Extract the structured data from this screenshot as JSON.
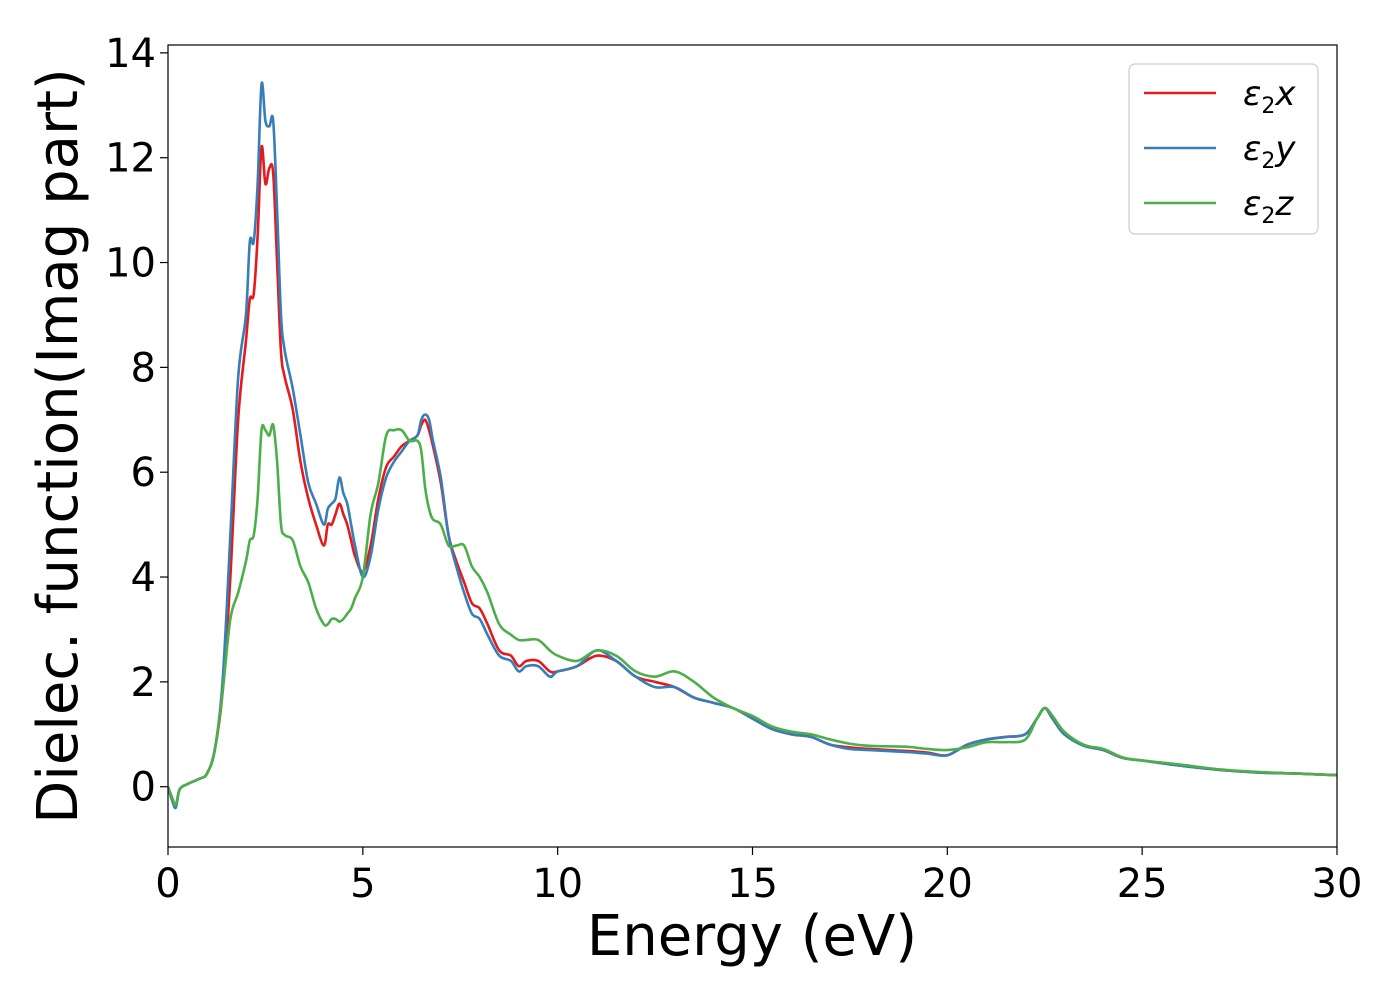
{
  "chart_data": {
    "type": "line",
    "xlabel": "Energy (eV)",
    "ylabel": "Dielec. function(Imag part)",
    "xlim": [
      0,
      30
    ],
    "ylim": [
      -1.15,
      14.15
    ],
    "xticks": [
      0,
      5,
      10,
      15,
      20,
      25,
      30
    ],
    "yticks": [
      0,
      2,
      4,
      6,
      8,
      10,
      12,
      14
    ],
    "grid": false,
    "legend_position": "top-right",
    "series": [
      {
        "name": "ε2x",
        "legend": {
          "base": "ε",
          "sub": "2",
          "var": "x"
        },
        "color": "#e41a1c",
        "x": [
          0,
          0.1,
          0.2,
          0.3,
          0.5,
          0.8,
          1.0,
          1.2,
          1.4,
          1.6,
          1.8,
          2.0,
          2.1,
          2.2,
          2.3,
          2.4,
          2.5,
          2.6,
          2.7,
          2.8,
          2.9,
          3.0,
          3.2,
          3.4,
          3.6,
          3.8,
          4.0,
          4.1,
          4.2,
          4.3,
          4.4,
          4.5,
          4.6,
          4.7,
          4.8,
          5.0,
          5.2,
          5.4,
          5.6,
          5.8,
          6.0,
          6.2,
          6.4,
          6.5,
          6.6,
          6.7,
          6.8,
          7.0,
          7.2,
          7.4,
          7.6,
          7.8,
          8.0,
          8.2,
          8.5,
          8.8,
          9.0,
          9.2,
          9.5,
          9.8,
          10.0,
          10.5,
          11.0,
          11.5,
          12.0,
          12.5,
          13.0,
          13.5,
          14.0,
          14.5,
          15.0,
          15.5,
          16.0,
          16.5,
          17.0,
          17.5,
          18.0,
          18.5,
          19.0,
          19.5,
          20.0,
          20.5,
          21.0,
          21.5,
          22.0,
          22.3,
          22.5,
          22.7,
          23.0,
          23.5,
          24.0,
          24.5,
          25.0,
          26.0,
          27.0,
          28.0,
          29.0,
          30.0
        ],
        "y": [
          0,
          -0.2,
          -0.35,
          -0.05,
          0.05,
          0.15,
          0.25,
          0.7,
          1.8,
          4.0,
          7.0,
          8.5,
          9.3,
          9.4,
          10.5,
          12.2,
          11.5,
          11.8,
          11.7,
          10.0,
          8.3,
          7.8,
          7.2,
          6.2,
          5.5,
          5.0,
          4.6,
          5.0,
          5.0,
          5.2,
          5.4,
          5.2,
          5.0,
          4.7,
          4.4,
          4.1,
          4.6,
          5.5,
          6.1,
          6.3,
          6.5,
          6.6,
          6.7,
          6.9,
          7.0,
          6.8,
          6.5,
          5.8,
          4.8,
          4.3,
          3.9,
          3.5,
          3.4,
          3.1,
          2.6,
          2.5,
          2.3,
          2.4,
          2.4,
          2.2,
          2.2,
          2.3,
          2.5,
          2.4,
          2.1,
          2.0,
          1.9,
          1.7,
          1.6,
          1.5,
          1.3,
          1.1,
          1.0,
          0.95,
          0.8,
          0.75,
          0.72,
          0.7,
          0.68,
          0.65,
          0.6,
          0.8,
          0.9,
          0.95,
          1.0,
          1.3,
          1.5,
          1.3,
          1.0,
          0.8,
          0.7,
          0.55,
          0.5,
          0.4,
          0.32,
          0.27,
          0.25,
          0.22
        ]
      },
      {
        "name": "ε2y",
        "legend": {
          "base": "ε",
          "sub": "2",
          "var": "y"
        },
        "color": "#377eb8",
        "x": [
          0,
          0.1,
          0.2,
          0.3,
          0.5,
          0.8,
          1.0,
          1.2,
          1.4,
          1.6,
          1.8,
          2.0,
          2.1,
          2.2,
          2.3,
          2.4,
          2.5,
          2.6,
          2.7,
          2.8,
          2.9,
          3.0,
          3.2,
          3.4,
          3.6,
          3.8,
          4.0,
          4.1,
          4.2,
          4.3,
          4.4,
          4.5,
          4.6,
          4.7,
          4.8,
          5.0,
          5.2,
          5.4,
          5.6,
          5.8,
          6.0,
          6.2,
          6.4,
          6.5,
          6.6,
          6.7,
          6.8,
          7.0,
          7.2,
          7.4,
          7.6,
          7.8,
          8.0,
          8.2,
          8.5,
          8.8,
          9.0,
          9.2,
          9.5,
          9.8,
          10.0,
          10.5,
          11.0,
          11.5,
          12.0,
          12.5,
          13.0,
          13.5,
          14.0,
          14.5,
          15.0,
          15.5,
          16.0,
          16.5,
          17.0,
          17.5,
          18.0,
          18.5,
          19.0,
          19.5,
          20.0,
          20.5,
          21.0,
          21.5,
          22.0,
          22.3,
          22.5,
          22.7,
          23.0,
          23.5,
          24.0,
          24.5,
          25.0,
          26.0,
          27.0,
          28.0,
          29.0,
          30.0
        ],
        "y": [
          0,
          -0.25,
          -0.4,
          -0.05,
          0.05,
          0.15,
          0.25,
          0.7,
          2.0,
          4.8,
          7.8,
          9.0,
          10.4,
          10.4,
          11.5,
          13.4,
          12.7,
          12.6,
          12.7,
          11.0,
          9.0,
          8.3,
          7.6,
          6.7,
          5.8,
          5.4,
          5.0,
          5.3,
          5.4,
          5.5,
          5.9,
          5.6,
          5.4,
          5.0,
          4.6,
          4.0,
          4.4,
          5.3,
          5.9,
          6.2,
          6.4,
          6.6,
          6.7,
          7.0,
          7.1,
          7.0,
          6.6,
          5.9,
          4.8,
          4.2,
          3.7,
          3.3,
          3.2,
          2.9,
          2.5,
          2.4,
          2.2,
          2.3,
          2.3,
          2.1,
          2.2,
          2.3,
          2.6,
          2.4,
          2.1,
          1.9,
          1.9,
          1.7,
          1.6,
          1.5,
          1.3,
          1.1,
          1.0,
          0.95,
          0.8,
          0.72,
          0.7,
          0.68,
          0.66,
          0.63,
          0.6,
          0.8,
          0.9,
          0.95,
          1.0,
          1.3,
          1.5,
          1.3,
          1.0,
          0.78,
          0.7,
          0.55,
          0.5,
          0.4,
          0.32,
          0.27,
          0.25,
          0.22
        ]
      },
      {
        "name": "ε2z",
        "legend": {
          "base": "ε",
          "sub": "2",
          "var": "z"
        },
        "color": "#4daf4a",
        "x": [
          0,
          0.1,
          0.2,
          0.3,
          0.5,
          0.8,
          1.0,
          1.2,
          1.4,
          1.6,
          1.8,
          2.0,
          2.1,
          2.2,
          2.3,
          2.4,
          2.5,
          2.6,
          2.7,
          2.8,
          2.9,
          3.0,
          3.2,
          3.4,
          3.6,
          3.8,
          4.0,
          4.1,
          4.2,
          4.3,
          4.4,
          4.5,
          4.6,
          4.7,
          4.8,
          5.0,
          5.2,
          5.4,
          5.6,
          5.8,
          6.0,
          6.2,
          6.4,
          6.5,
          6.6,
          6.7,
          6.8,
          7.0,
          7.2,
          7.4,
          7.6,
          7.8,
          8.0,
          8.2,
          8.5,
          8.8,
          9.0,
          9.2,
          9.5,
          9.8,
          10.0,
          10.5,
          11.0,
          11.5,
          12.0,
          12.5,
          13.0,
          13.5,
          14.0,
          14.5,
          15.0,
          15.5,
          16.0,
          16.5,
          17.0,
          17.5,
          18.0,
          18.5,
          19.0,
          19.5,
          20.0,
          20.5,
          21.0,
          21.5,
          22.0,
          22.3,
          22.5,
          22.7,
          23.0,
          23.5,
          24.0,
          24.5,
          25.0,
          26.0,
          27.0,
          28.0,
          29.0,
          30.0
        ],
        "y": [
          0,
          -0.2,
          -0.35,
          -0.05,
          0.05,
          0.15,
          0.25,
          0.7,
          1.8,
          3.2,
          3.7,
          4.3,
          4.7,
          4.8,
          5.5,
          6.8,
          6.8,
          6.7,
          6.9,
          6.2,
          5.0,
          4.8,
          4.7,
          4.2,
          3.9,
          3.4,
          3.1,
          3.1,
          3.2,
          3.2,
          3.15,
          3.2,
          3.3,
          3.4,
          3.6,
          4.0,
          5.2,
          5.8,
          6.7,
          6.8,
          6.8,
          6.6,
          6.6,
          6.4,
          5.7,
          5.3,
          5.1,
          5.0,
          4.6,
          4.6,
          4.6,
          4.2,
          4.0,
          3.7,
          3.1,
          2.9,
          2.8,
          2.8,
          2.8,
          2.6,
          2.5,
          2.4,
          2.6,
          2.5,
          2.2,
          2.1,
          2.2,
          2.0,
          1.7,
          1.5,
          1.35,
          1.15,
          1.05,
          1.0,
          0.9,
          0.82,
          0.78,
          0.77,
          0.76,
          0.72,
          0.7,
          0.75,
          0.85,
          0.85,
          0.9,
          1.3,
          1.5,
          1.35,
          1.05,
          0.8,
          0.72,
          0.56,
          0.5,
          0.42,
          0.33,
          0.28,
          0.25,
          0.22
        ]
      }
    ]
  }
}
